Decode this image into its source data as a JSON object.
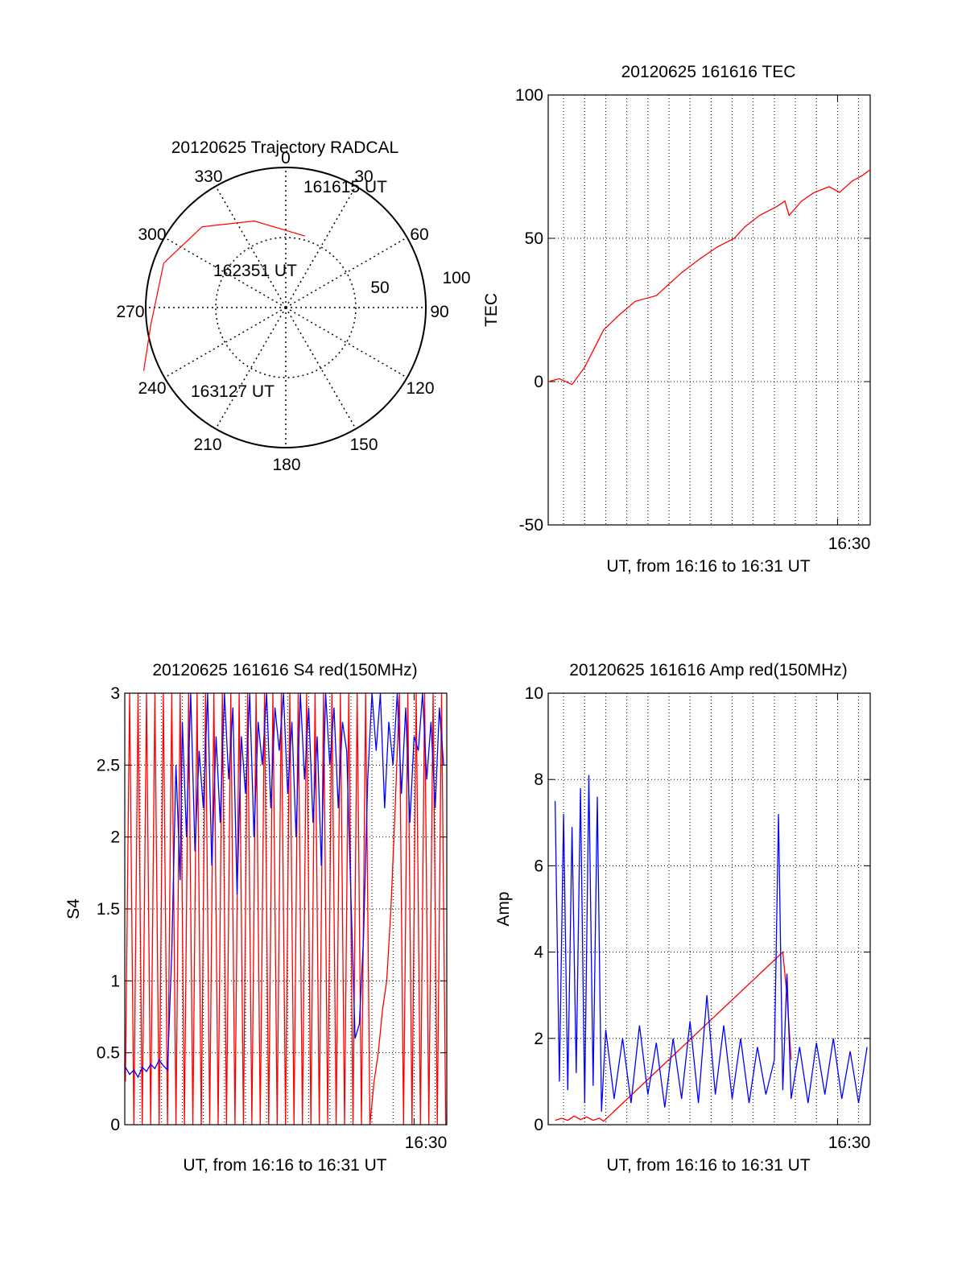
{
  "colors": {
    "red": "#ff0000",
    "blue": "#0000ff",
    "axis": "#000000"
  },
  "chart_data": [
    {
      "id": "trajectory",
      "type": "polar",
      "title": "20120625 Trajectory RADCAL",
      "azimuth_labels": [
        "0",
        "30",
        "60",
        "90",
        "120",
        "150",
        "180",
        "210",
        "240",
        "270",
        "300",
        "330"
      ],
      "radius_labels": [
        "50",
        "100"
      ],
      "elevation_rings": [
        0,
        50
      ],
      "track": {
        "color": "red",
        "points": [
          {
            "az": 15,
            "el": 41
          },
          {
            "az": 340,
            "el": 29
          },
          {
            "az": 314,
            "el": 13
          },
          {
            "az": 290,
            "el": 4
          },
          {
            "az": 263,
            "el": 0
          },
          {
            "az": 246,
            "el": -13
          }
        ]
      },
      "annotations": [
        "161615 UT",
        "162351 UT",
        "163127 UT"
      ]
    },
    {
      "id": "tec",
      "type": "line",
      "title": "20120625 161616 TEC",
      "ylabel": "TEC",
      "xlabel": "UT, from 16:16 to 16:31 UT",
      "x_tick_label": "16:30",
      "xlim_minutes": [
        16.27,
        31.55
      ],
      "ylim": [
        -50,
        100
      ],
      "yticks": [
        "-50",
        "0",
        "50",
        "100"
      ],
      "series": [
        {
          "color": "red",
          "x": [
            16.27,
            16.8,
            17.4,
            18.0,
            18.9,
            19.6,
            20.4,
            21.4,
            22.6,
            23.5,
            24.3,
            25.1,
            25.6,
            26.3,
            27.1,
            27.5,
            27.7,
            28.3,
            28.9,
            29.6,
            30.1,
            30.7,
            31.2,
            31.55
          ],
          "y": [
            0,
            1,
            -1,
            5,
            18,
            23,
            28,
            30,
            38,
            43,
            47,
            50,
            54,
            58,
            61,
            63,
            58,
            63,
            66,
            68,
            66,
            70,
            72,
            74
          ]
        }
      ]
    },
    {
      "id": "s4",
      "type": "line",
      "title": "20120625 161616 S4 red(150MHz)",
      "ylabel": "S4",
      "xlabel": "UT, from 16:16 to 16:31 UT",
      "x_tick_label": "16:30",
      "xlim_minutes": [
        16.27,
        31.55
      ],
      "ylim": [
        0,
        3
      ],
      "yticks": [
        "0",
        "0.5",
        "1",
        "1.5",
        "2",
        "2.5",
        "3"
      ],
      "series": [
        {
          "color": "red",
          "x": [
            16.3,
            16.5,
            16.7,
            16.9,
            17.1,
            17.3,
            17.5,
            17.7,
            17.9,
            18.1,
            18.3,
            18.5,
            18.7,
            18.9,
            19.1,
            19.3,
            19.5,
            19.7,
            19.9,
            20.1,
            20.3,
            20.5,
            20.7,
            20.9,
            21.1,
            21.3,
            21.5,
            21.7,
            21.9,
            22.1,
            22.3,
            22.5,
            22.7,
            22.9,
            23.1,
            23.3,
            23.5,
            23.7,
            23.9,
            24.1,
            24.3,
            24.5,
            24.7,
            24.9,
            25.1,
            25.3,
            25.5,
            25.7,
            25.9,
            26.1,
            26.3,
            26.5,
            26.7,
            26.9,
            27.1,
            27.3,
            27.5,
            27.7,
            27.9,
            28.1,
            28.3,
            28.5,
            28.7,
            28.9,
            29.1,
            29.3,
            29.5,
            29.7,
            29.9,
            30.1,
            30.3,
            30.5,
            30.7,
            30.9,
            31.1,
            31.3,
            31.5
          ],
          "y": [
            0.3,
            3,
            0,
            3,
            0,
            3,
            0,
            3,
            0,
            3,
            0,
            3,
            0,
            3,
            0,
            3,
            0,
            3,
            0,
            3,
            0,
            3,
            0,
            3,
            0,
            3,
            0,
            3,
            0,
            3,
            0,
            3,
            0,
            3,
            0,
            3,
            0,
            3,
            0,
            3,
            0,
            3,
            0,
            3,
            0,
            3,
            0,
            3,
            0,
            3,
            0,
            3,
            0,
            3,
            0,
            3,
            0,
            3,
            0,
            0.3,
            0.5,
            0.8,
            1,
            1.5,
            2.2,
            3,
            0,
            3,
            0,
            3,
            0,
            3,
            0,
            3,
            0,
            3,
            0
          ]
        },
        {
          "color": "blue",
          "x": [
            16.3,
            16.5,
            16.7,
            16.9,
            17.1,
            17.3,
            17.5,
            17.7,
            17.9,
            18.1,
            18.3,
            18.5,
            18.7,
            18.9,
            19.0,
            19.2,
            19.4,
            19.6,
            19.8,
            20.0,
            20.2,
            20.4,
            20.6,
            20.8,
            21.0,
            21.2,
            21.4,
            21.6,
            21.8,
            22.0,
            22.2,
            22.4,
            22.6,
            22.8,
            23.0,
            23.2,
            23.4,
            23.6,
            23.8,
            24.0,
            24.2,
            24.4,
            24.6,
            24.8,
            25.0,
            25.2,
            25.4,
            25.6,
            25.8,
            26.0,
            26.2,
            26.4,
            26.6,
            26.8,
            27.0,
            27.2,
            27.4,
            27.6,
            27.8,
            28.0,
            28.2,
            28.4,
            28.6,
            28.8,
            29.0,
            29.2,
            29.4,
            29.6,
            29.8,
            30.0,
            30.2,
            30.4,
            30.6,
            30.8,
            31.0,
            31.2,
            31.4
          ],
          "y": [
            0.4,
            0.35,
            0.38,
            0.33,
            0.4,
            0.37,
            0.42,
            0.39,
            0.45,
            0.41,
            0.38,
            1.2,
            2.5,
            1.7,
            2.8,
            2.0,
            3,
            1.9,
            2.6,
            2.2,
            3,
            1.8,
            2.7,
            2.1,
            3,
            2.4,
            2.9,
            1.6,
            2.7,
            2.3,
            3,
            2.0,
            2.8,
            2.5,
            3,
            2.2,
            2.9,
            2.6,
            3,
            2.3,
            2.8,
            2.0,
            3,
            2.4,
            2.9,
            2.1,
            2.7,
            1.8,
            3,
            2.5,
            2.9,
            2.2,
            2.8,
            2.6,
            1.6,
            0.6,
            0.7,
            1.3,
            2.4,
            3,
            2.6,
            3,
            2.2,
            2.8,
            2.5,
            3,
            2.3,
            2.9,
            2.1,
            2.7,
            2.6,
            3,
            2.4,
            2.8,
            2.2,
            2.9,
            2.5
          ]
        }
      ]
    },
    {
      "id": "amp",
      "type": "line",
      "title": "20120625 161616 Amp red(150MHz)",
      "ylabel": "Amp",
      "xlabel": "UT, from 16:16 to 16:31 UT",
      "x_tick_label": "16:30",
      "xlim_minutes": [
        16.27,
        31.55
      ],
      "ylim": [
        0,
        10
      ],
      "yticks": [
        "0",
        "2",
        "4",
        "6",
        "8",
        "10"
      ],
      "series": [
        {
          "color": "red",
          "x": [
            16.6,
            16.9,
            17.2,
            17.5,
            17.8,
            18.1,
            18.4,
            18.7,
            18.9,
            27.4,
            27.6,
            27.8
          ],
          "y": [
            0.1,
            0.15,
            0.1,
            0.2,
            0.12,
            0.18,
            0.1,
            0.15,
            0.08,
            4.0,
            3.0,
            1.5
          ]
        },
        {
          "color": "blue",
          "x": [
            16.6,
            16.8,
            17.0,
            17.2,
            17.4,
            17.6,
            17.8,
            18.0,
            18.2,
            18.4,
            18.6,
            18.8,
            19.0,
            19.4,
            19.8,
            20.2,
            20.6,
            21.0,
            21.4,
            21.8,
            22.2,
            22.6,
            23.0,
            23.4,
            23.8,
            24.2,
            24.6,
            25.0,
            25.4,
            25.8,
            26.2,
            26.6,
            27.0,
            27.2,
            27.4,
            27.6,
            27.8,
            28.2,
            28.6,
            29.0,
            29.4,
            29.8,
            30.2,
            30.6,
            31.0,
            31.4
          ],
          "y": [
            7.5,
            1.0,
            7.2,
            0.8,
            6.9,
            1.2,
            7.8,
            0.5,
            8.1,
            0.9,
            7.6,
            0.3,
            2.2,
            0.6,
            2.0,
            0.5,
            2.3,
            0.7,
            1.9,
            0.4,
            2.0,
            0.6,
            2.4,
            0.5,
            3.0,
            0.7,
            2.3,
            0.6,
            2.0,
            0.5,
            1.8,
            0.7,
            1.5,
            7.2,
            0.8,
            3.5,
            0.6,
            1.8,
            0.5,
            1.9,
            0.7,
            2.0,
            0.6,
            1.7,
            0.5,
            1.8
          ]
        }
      ]
    }
  ]
}
